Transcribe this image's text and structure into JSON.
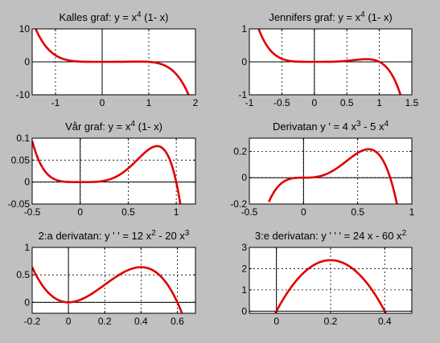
{
  "chart_data": [
    {
      "type": "line",
      "title": {
        "text": "Kalles graf:  y = x",
        "sup": "4",
        "tail": " (1- x)"
      },
      "xlim": [
        -1.5,
        2
      ],
      "ylim": [
        -10,
        10
      ],
      "xticks": [
        -1,
        0,
        1,
        2
      ],
      "xtick_labels": [
        "-1",
        "0",
        "1",
        "2"
      ],
      "yticks": [
        -10,
        0,
        10
      ],
      "ytick_labels": [
        "-10",
        "0",
        "10"
      ],
      "grid": true,
      "series": [
        {
          "function": "x^4*(1-x)",
          "color": "#e00000",
          "x": [
            -1.5,
            -1.3,
            -1.1,
            -0.9,
            -0.7,
            -0.5,
            0,
            0.5,
            1,
            1.2,
            1.4,
            1.6,
            1.8,
            2
          ],
          "y": [
            12.66,
            6.57,
            3.07,
            1.25,
            0.41,
            0.09,
            0,
            0.03,
            0,
            -0.41,
            -1.54,
            -3.93,
            -8.4,
            -16
          ]
        }
      ]
    },
    {
      "type": "line",
      "title": {
        "text": "Jennifers graf:  y = x",
        "sup": "4",
        "tail": " (1- x)"
      },
      "xlim": [
        -1,
        1.5
      ],
      "ylim": [
        -1,
        1
      ],
      "xticks": [
        -1,
        -0.5,
        0,
        0.5,
        1,
        1.5
      ],
      "xtick_labels": [
        "-1",
        "-0.5",
        "0",
        "0.5",
        "1",
        "1.5"
      ],
      "yticks": [
        -1,
        0,
        1
      ],
      "ytick_labels": [
        "-1",
        "0",
        "1"
      ],
      "grid": true,
      "series": [
        {
          "function": "x^4*(1-x)",
          "color": "#e00000",
          "x": [
            -0.9,
            -0.7,
            -0.5,
            -0.25,
            0,
            0.25,
            0.5,
            0.8,
            1,
            1.2,
            1.35
          ],
          "y": [
            1.25,
            0.41,
            0.09,
            0.005,
            0,
            0.003,
            0.03,
            0.08,
            0,
            -0.41,
            -1.16
          ]
        }
      ]
    },
    {
      "type": "line",
      "title": {
        "text": "Vår graf:  y = x",
        "sup": "4",
        "tail": " (1- x)"
      },
      "xlim": [
        -0.5,
        1.2
      ],
      "ylim": [
        -0.05,
        0.1
      ],
      "xticks": [
        -0.5,
        0,
        0.5,
        1
      ],
      "xtick_labels": [
        "-0.5",
        "0",
        "0.5",
        "1"
      ],
      "yticks": [
        -0.05,
        0,
        0.05,
        0.1
      ],
      "ytick_labels": [
        "-0.05",
        "0",
        "0.05",
        "0.1"
      ],
      "grid": true,
      "series": [
        {
          "function": "x^4*(1-x)",
          "color": "#e00000",
          "x": [
            -0.5,
            -0.3,
            -0.1,
            0,
            0.2,
            0.4,
            0.6,
            0.8,
            0.9,
            1,
            1.05
          ],
          "y": [
            0.094,
            0.011,
            0,
            0,
            0.001,
            0.015,
            0.052,
            0.082,
            0.066,
            0,
            -0.061
          ]
        }
      ]
    },
    {
      "type": "line",
      "title": {
        "text": "Derivatan  y '  =  4 x",
        "sup": "3",
        "mid": " - 5 x",
        "sup2": "4"
      },
      "xlim": [
        -0.5,
        1
      ],
      "ylim": [
        -0.2,
        0.3
      ],
      "xticks": [
        -0.5,
        0,
        0.5,
        1
      ],
      "xtick_labels": [
        "-0.5",
        "0",
        "0.5",
        "1"
      ],
      "yticks": [
        -0.2,
        0,
        0.2
      ],
      "ytick_labels": [
        "-0.2",
        "0",
        "0.2"
      ],
      "grid": true,
      "series": [
        {
          "function": "4x^3-5x^4",
          "color": "#e00000",
          "x": [
            -0.32,
            -0.2,
            0,
            0.2,
            0.4,
            0.6,
            0.7,
            0.8,
            0.87
          ],
          "y": [
            -0.183,
            -0.04,
            0,
            0.024,
            0.128,
            0.216,
            0.172,
            0,
            -0.24
          ]
        }
      ]
    },
    {
      "type": "line",
      "title": {
        "text": "2:a derivatan:  y ' '  =  12 x",
        "sup": "2",
        "mid": " - 20 x",
        "sup2": "3"
      },
      "xlim": [
        -0.2,
        0.7
      ],
      "ylim": [
        -0.2,
        1
      ],
      "xticks": [
        -0.2,
        0,
        0.2,
        0.4,
        0.6
      ],
      "xtick_labels": [
        "-0.2",
        "0",
        "0.2",
        "0.4",
        "0.6"
      ],
      "yticks": [
        0,
        0.5,
        1
      ],
      "ytick_labels": [
        "0",
        "0.5",
        "1"
      ],
      "grid": true,
      "series": [
        {
          "function": "12x^2-20x^3",
          "color": "#e00000",
          "x": [
            -0.2,
            -0.1,
            0,
            0.2,
            0.4,
            0.5,
            0.6,
            0.64
          ],
          "y": [
            0.64,
            0.14,
            0,
            0.32,
            0.64,
            0.5,
            0,
            -0.32
          ]
        }
      ]
    },
    {
      "type": "line",
      "title": {
        "text": "3:e derivatan:  y ' ' '  =  24 x - 60 x",
        "sup": "2"
      },
      "xlim": [
        -0.1,
        0.5
      ],
      "ylim": [
        -0.1,
        3
      ],
      "xticks": [
        0,
        0.2,
        0.4
      ],
      "xtick_labels": [
        "0",
        "0.2",
        "0.4"
      ],
      "yticks": [
        0,
        1,
        2,
        3
      ],
      "ytick_labels": [
        "0",
        "1",
        "2",
        "3"
      ],
      "grid": true,
      "series": [
        {
          "function": "24x-60x^2",
          "color": "#e00000",
          "x": [
            -0.004,
            0,
            0.1,
            0.2,
            0.3,
            0.4,
            0.404
          ],
          "y": [
            -0.1,
            0,
            1.8,
            2.4,
            1.8,
            0,
            -0.1
          ]
        }
      ]
    }
  ]
}
